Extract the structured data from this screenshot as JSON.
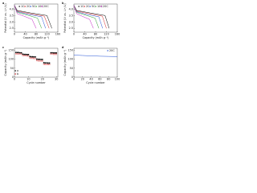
{
  "chart_data": [
    {
      "type": "line",
      "label": "a",
      "xlabel": "Capacity (mAh g⁻¹)",
      "ylabel": "Potential (V vs. Li⁺/Li)",
      "xlim": [
        0,
        160
      ],
      "ylim": [
        2.2,
        4.4
      ],
      "xticks": [
        0,
        40,
        80,
        120,
        160
      ],
      "yticks": [
        {
          "value": 2.5,
          "label": "2.5"
        },
        {
          "value": 3,
          "label": "3.0"
        },
        {
          "value": 3.5,
          "label": "3.5"
        },
        {
          "value": 4,
          "label": "4.0"
        }
      ],
      "series": [
        {
          "name": "1C",
          "color": "#000000",
          "x": [
            0,
            10,
            60,
            120,
            138
          ],
          "values": [
            4.3,
            3.9,
            3.7,
            3.5,
            2.5
          ]
        },
        {
          "name": "2C",
          "color": "#d62728",
          "x": [
            0,
            10,
            55,
            110,
            128
          ],
          "values": [
            4.3,
            3.85,
            3.65,
            3.45,
            2.5
          ]
        },
        {
          "name": "5C",
          "color": "#1f4fd6",
          "x": [
            0,
            10,
            50,
            100,
            115
          ],
          "values": [
            4.3,
            3.8,
            3.6,
            3.4,
            2.5
          ]
        },
        {
          "name": "10C",
          "color": "#2ca02c",
          "x": [
            0,
            10,
            45,
            85,
            100
          ],
          "values": [
            4.3,
            3.75,
            3.55,
            3.3,
            2.5
          ]
        },
        {
          "name": "20C",
          "color": "#c020c0",
          "x": [
            0,
            10,
            35,
            65,
            80
          ],
          "values": [
            4.3,
            3.65,
            3.45,
            3.2,
            2.5
          ]
        }
      ]
    },
    {
      "type": "line",
      "label": "b",
      "xlabel": "Capacity (mAh g⁻¹)",
      "ylabel": "Potential (V vs. Li⁺/Li)",
      "xlim": [
        0,
        160
      ],
      "ylim": [
        2.2,
        4.4
      ],
      "xticks": [
        0,
        40,
        80,
        120,
        160
      ],
      "yticks": [
        {
          "value": 2.5,
          "label": "2.5"
        },
        {
          "value": 3,
          "label": "3.0"
        },
        {
          "value": 3.5,
          "label": "3.5"
        },
        {
          "value": 4,
          "label": "4.0"
        }
      ],
      "series": [
        {
          "name": "1C",
          "color": "#000000",
          "x": [
            0,
            10,
            60,
            115,
            130
          ],
          "values": [
            4.3,
            3.9,
            3.7,
            3.5,
            2.5
          ]
        },
        {
          "name": "2C",
          "color": "#d62728",
          "x": [
            0,
            10,
            55,
            105,
            120
          ],
          "values": [
            4.3,
            3.85,
            3.65,
            3.45,
            2.5
          ]
        },
        {
          "name": "5C",
          "color": "#1f4fd6",
          "x": [
            0,
            10,
            45,
            92,
            106
          ],
          "values": [
            4.3,
            3.8,
            3.6,
            3.4,
            2.5
          ]
        },
        {
          "name": "10C",
          "color": "#2ca02c",
          "x": [
            0,
            10,
            40,
            78,
            92
          ],
          "values": [
            4.3,
            3.75,
            3.55,
            3.3,
            2.5
          ]
        },
        {
          "name": "20C",
          "color": "#c020c0",
          "x": [
            0,
            10,
            30,
            58,
            72
          ],
          "values": [
            4.3,
            3.65,
            3.45,
            3.2,
            2.5
          ]
        }
      ]
    },
    {
      "type": "scatter",
      "label": "c",
      "xlabel": "Cycle number",
      "ylabel": "Capacity (mAh g⁻¹)",
      "xlim": [
        0,
        31
      ],
      "ylim": [
        0,
        160
      ],
      "xticks": [
        0,
        10,
        20,
        30
      ],
      "yticks": [
        0,
        50,
        100,
        150
      ],
      "x": [
        1,
        2,
        3,
        4,
        5,
        6,
        7,
        8,
        9,
        10,
        11,
        12,
        13,
        14,
        15,
        16,
        17,
        18,
        19,
        20,
        21,
        22,
        23,
        24,
        25,
        26,
        27,
        28,
        29,
        30
      ],
      "series": [
        {
          "name": "a",
          "color": "#000000",
          "values": [
            137,
            136,
            136,
            135,
            135,
            127,
            126,
            126,
            125,
            125,
            114,
            113,
            113,
            112,
            112,
            100,
            99,
            99,
            98,
            98,
            80,
            79,
            79,
            78,
            78,
            135,
            135,
            134,
            134,
            134
          ]
        },
        {
          "name": "b",
          "color": "#d62728",
          "values": [
            130,
            129,
            129,
            128,
            128,
            120,
            119,
            119,
            118,
            118,
            106,
            105,
            105,
            104,
            104,
            92,
            91,
            91,
            90,
            90,
            72,
            71,
            71,
            70,
            70,
            128,
            128,
            127,
            127,
            127
          ]
        }
      ]
    },
    {
      "type": "line",
      "label": "d",
      "xlabel": "Cycle number",
      "ylabel": "Capacity (mAh g⁻¹)",
      "xlim": [
        0,
        100
      ],
      "ylim": [
        0,
        160
      ],
      "xticks": [
        0,
        20,
        40,
        60,
        80,
        100
      ],
      "yticks": [
        0,
        50,
        100,
        150
      ],
      "series": [
        {
          "name": "20C",
          "color": "#1f4fd6",
          "x": [
            0,
            20,
            40,
            60,
            80,
            100
          ],
          "values": [
            122,
            120,
            118,
            116,
            115,
            114
          ]
        }
      ]
    }
  ]
}
